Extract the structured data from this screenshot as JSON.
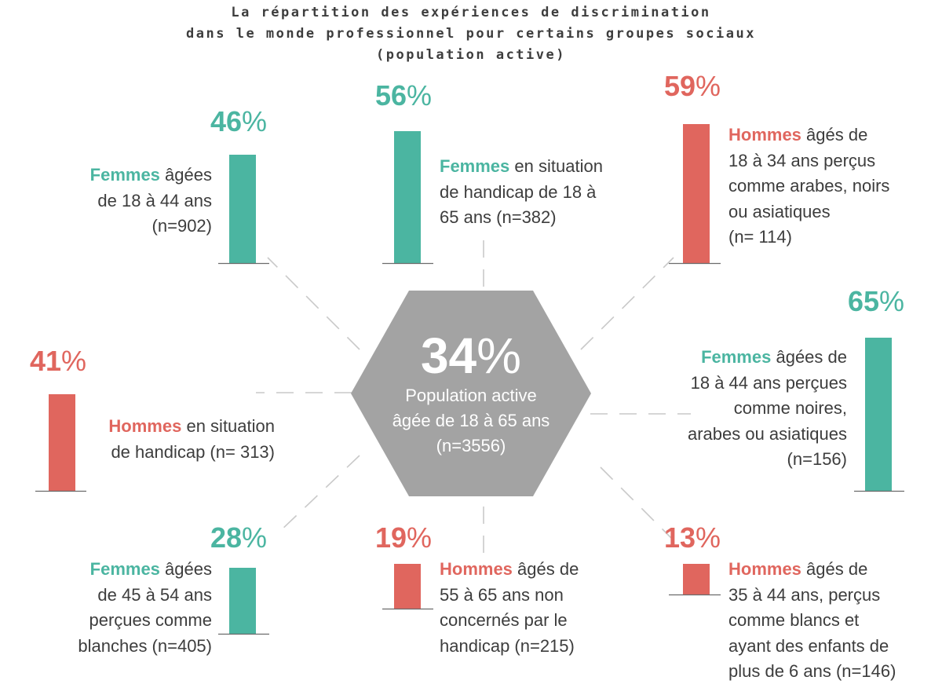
{
  "chart_data": {
    "type": "bar",
    "title_lines": [
      "La répartition des expériences de discrimination",
      "dans le monde professionnel pour certains groupes sociaux",
      "(population active)"
    ],
    "center": {
      "value": 34,
      "sign": "%",
      "label_lines": [
        "Population active",
        "âgée de 18 à 65 ans",
        "(n=3556)"
      ]
    },
    "ylim": [
      0,
      100
    ],
    "colors": {
      "femmes": "#4bb5a1",
      "hommes": "#e0665e",
      "hexagon": "#a3a3a3",
      "connector": "#c9c9c9",
      "baseline": "#6b6b6b"
    },
    "groups": [
      {
        "id": "femmes-18-44",
        "value": 46,
        "sign": "%",
        "color_key": "femmes",
        "highlight": "Femmes",
        "lines": [
          "âgées",
          "de 18 à 44 ans",
          "(n=902)"
        ]
      },
      {
        "id": "femmes-handicap",
        "value": 56,
        "sign": "%",
        "color_key": "femmes",
        "highlight": "Femmes",
        "lines": [
          "en situation",
          "de handicap de 18 à",
          "65 ans (n=382)"
        ]
      },
      {
        "id": "hommes-18-34-percus",
        "value": 59,
        "sign": "%",
        "color_key": "hommes",
        "highlight": "Hommes",
        "lines": [
          "âgés de",
          "18 à 34 ans perçus",
          "comme arabes, noirs",
          "ou asiatiques",
          "(n= 114)"
        ]
      },
      {
        "id": "hommes-handicap",
        "value": 41,
        "sign": "%",
        "color_key": "hommes",
        "highlight": "Hommes",
        "lines": [
          "en situation",
          "de handicap (n= 313)"
        ]
      },
      {
        "id": "femmes-18-44-percues",
        "value": 65,
        "sign": "%",
        "color_key": "femmes",
        "highlight": "Femmes",
        "lines": [
          "âgées de",
          "18 à 44 ans perçues",
          "comme noires,",
          "arabes ou asiatiques",
          "(n=156)"
        ]
      },
      {
        "id": "femmes-45-54-blanches",
        "value": 28,
        "sign": "%",
        "color_key": "femmes",
        "highlight": "Femmes",
        "lines": [
          "âgées",
          "de 45 à 54 ans",
          "perçues comme",
          "blanches (n=405)"
        ]
      },
      {
        "id": "hommes-55-65",
        "value": 19,
        "sign": "%",
        "color_key": "hommes",
        "highlight": "Hommes",
        "lines": [
          "âgés de",
          "55 à 65 ans non",
          "concernés par le",
          "handicap (n=215)"
        ]
      },
      {
        "id": "hommes-35-44-blancs",
        "value": 13,
        "sign": "%",
        "color_key": "hommes",
        "highlight": "Hommes",
        "lines": [
          "âgés de",
          "35 à 44 ans, perçus",
          "comme blancs et",
          "ayant des enfants de",
          "plus de 6 ans (n=146)"
        ]
      }
    ]
  }
}
